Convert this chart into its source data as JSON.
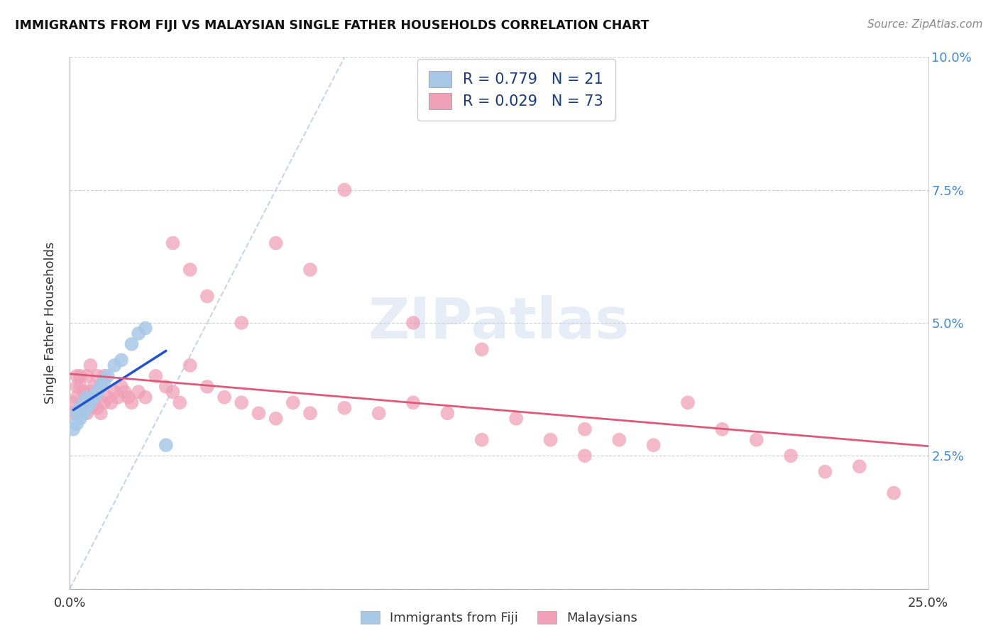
{
  "title": "IMMIGRANTS FROM FIJI VS MALAYSIAN SINGLE FATHER HOUSEHOLDS CORRELATION CHART",
  "source": "Source: ZipAtlas.com",
  "ylabel": "Single Father Households",
  "x_min": 0.0,
  "x_max": 0.25,
  "y_min": 0.0,
  "y_max": 0.1,
  "x_tick_positions": [
    0.0,
    0.25
  ],
  "x_tick_labels": [
    "0.0%",
    "25.0%"
  ],
  "y_ticks": [
    0.0,
    0.025,
    0.05,
    0.075,
    0.1
  ],
  "y_tick_labels_right": [
    "",
    "2.5%",
    "5.0%",
    "7.5%",
    "10.0%"
  ],
  "fiji_color": "#a8c8e8",
  "fiji_line_color": "#2255cc",
  "malaysian_color": "#f0a0b8",
  "malaysian_line_color": "#e05878",
  "diag_color": "#b8cce4",
  "fiji_R": 0.779,
  "fiji_N": 21,
  "malaysian_R": 0.029,
  "malaysian_N": 73,
  "legend_entries": [
    "Immigrants from Fiji",
    "Malaysians"
  ],
  "watermark": "ZIPatlas",
  "fiji_x": [
    0.001,
    0.002,
    0.002,
    0.003,
    0.003,
    0.004,
    0.004,
    0.005,
    0.005,
    0.006,
    0.007,
    0.008,
    0.009,
    0.01,
    0.011,
    0.013,
    0.015,
    0.018,
    0.02,
    0.022,
    0.028
  ],
  "fiji_y": [
    0.03,
    0.031,
    0.033,
    0.032,
    0.034,
    0.033,
    0.035,
    0.034,
    0.036,
    0.035,
    0.036,
    0.037,
    0.038,
    0.039,
    0.04,
    0.042,
    0.043,
    0.046,
    0.048,
    0.049,
    0.027
  ],
  "malaysian_x": [
    0.001,
    0.001,
    0.002,
    0.002,
    0.002,
    0.003,
    0.003,
    0.003,
    0.004,
    0.004,
    0.005,
    0.005,
    0.005,
    0.006,
    0.006,
    0.006,
    0.007,
    0.007,
    0.008,
    0.008,
    0.009,
    0.009,
    0.01,
    0.01,
    0.011,
    0.012,
    0.013,
    0.014,
    0.015,
    0.016,
    0.017,
    0.018,
    0.02,
    0.022,
    0.025,
    0.028,
    0.03,
    0.032,
    0.035,
    0.04,
    0.045,
    0.05,
    0.055,
    0.06,
    0.065,
    0.07,
    0.08,
    0.09,
    0.1,
    0.11,
    0.12,
    0.13,
    0.14,
    0.15,
    0.16,
    0.17,
    0.18,
    0.19,
    0.2,
    0.21,
    0.22,
    0.23,
    0.03,
    0.035,
    0.04,
    0.05,
    0.06,
    0.07,
    0.08,
    0.1,
    0.12,
    0.15,
    0.24
  ],
  "malaysian_y": [
    0.033,
    0.035,
    0.036,
    0.038,
    0.04,
    0.034,
    0.038,
    0.04,
    0.035,
    0.037,
    0.033,
    0.036,
    0.04,
    0.034,
    0.037,
    0.042,
    0.035,
    0.038,
    0.034,
    0.04,
    0.033,
    0.038,
    0.035,
    0.04,
    0.036,
    0.035,
    0.037,
    0.036,
    0.038,
    0.037,
    0.036,
    0.035,
    0.037,
    0.036,
    0.04,
    0.038,
    0.037,
    0.035,
    0.042,
    0.038,
    0.036,
    0.035,
    0.033,
    0.032,
    0.035,
    0.033,
    0.034,
    0.033,
    0.035,
    0.033,
    0.028,
    0.032,
    0.028,
    0.03,
    0.028,
    0.027,
    0.035,
    0.03,
    0.028,
    0.025,
    0.022,
    0.023,
    0.065,
    0.06,
    0.055,
    0.05,
    0.065,
    0.06,
    0.075,
    0.05,
    0.045,
    0.025,
    0.018
  ],
  "grid_color": "#d0d0d0",
  "spine_color": "#aaaaaa"
}
